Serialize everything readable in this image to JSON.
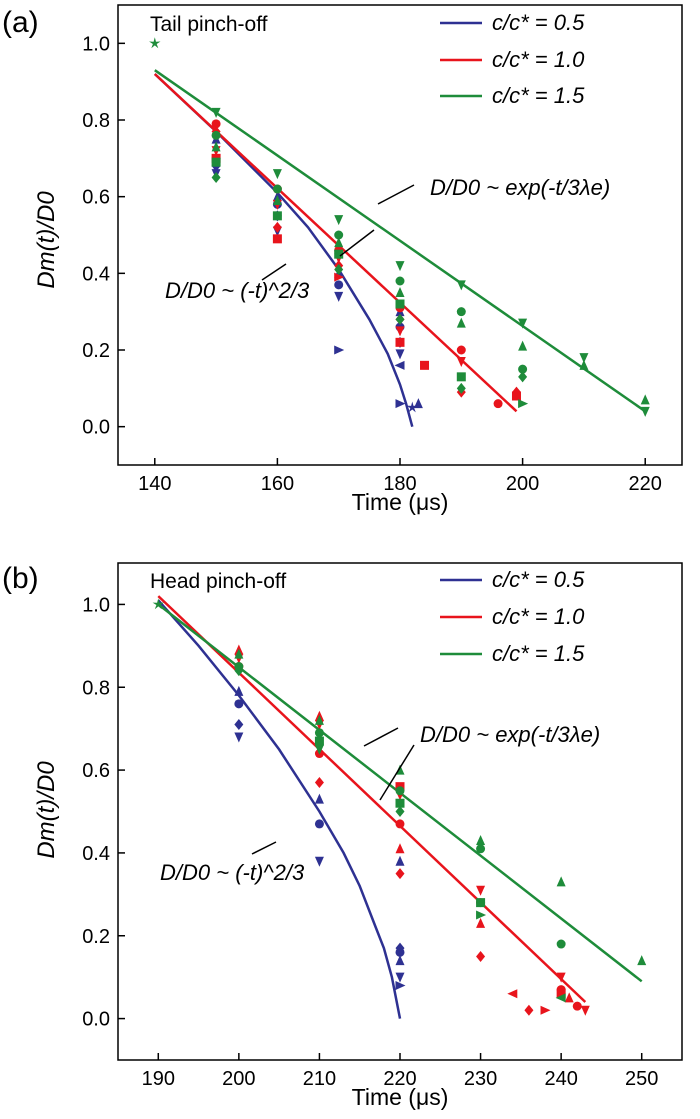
{
  "chart_data": [
    {
      "panel_label": "(a)",
      "type": "scatter",
      "title": "Tail pinch-off",
      "xlabel": "Time (μs)",
      "ylabel": "Dm(t)/D0",
      "xlim": [
        134,
        226
      ],
      "ylim": [
        -0.1,
        1.1
      ],
      "xticks": [
        140,
        160,
        180,
        200,
        220
      ],
      "yticks": [
        0.0,
        0.2,
        0.4,
        0.6,
        0.8,
        1.0
      ],
      "series": [
        {
          "name": "c/c* = 0.5",
          "color": "#2e3192",
          "fit": [
            [
              140,
              0.92
            ],
            [
              150,
              0.77
            ],
            [
              160,
              0.61
            ],
            [
              165,
              0.52
            ],
            [
              170,
              0.41
            ],
            [
              175,
              0.28
            ],
            [
              178,
              0.19
            ],
            [
              180,
              0.11
            ],
            [
              181,
              0.06
            ],
            [
              182,
              0.0
            ]
          ],
          "points": [
            [
              150,
              0.75,
              "tri"
            ],
            [
              150,
              0.7,
              "circ"
            ],
            [
              150,
              0.68,
              "diam"
            ],
            [
              150,
              0.66,
              "tridown"
            ],
            [
              160,
              0.6,
              "tri"
            ],
            [
              160,
              0.58,
              "circ"
            ],
            [
              160,
              0.55,
              "diam"
            ],
            [
              160,
              0.51,
              "tridown"
            ],
            [
              170,
              0.4,
              "tri"
            ],
            [
              170,
              0.37,
              "circ"
            ],
            [
              170,
              0.34,
              "tridown"
            ],
            [
              170,
              0.2,
              "triright"
            ],
            [
              180,
              0.3,
              "tri"
            ],
            [
              180,
              0.26,
              "circ"
            ],
            [
              180,
              0.22,
              "diam"
            ],
            [
              180,
              0.19,
              "tridown"
            ],
            [
              180,
              0.16,
              "trileft"
            ],
            [
              180,
              0.06,
              "triright"
            ],
            [
              182,
              0.05,
              "star"
            ],
            [
              183,
              0.06,
              "tri"
            ]
          ]
        },
        {
          "name": "c/c* = 1.0",
          "color": "#e8141c",
          "fit": [
            [
              140,
              0.92
            ],
            [
              199,
              0.04
            ]
          ],
          "points": [
            [
              150,
              0.79,
              "circ"
            ],
            [
              150,
              0.77,
              "diam"
            ],
            [
              150,
              0.72,
              "tridown"
            ],
            [
              150,
              0.7,
              "sq"
            ],
            [
              160,
              0.62,
              "circ"
            ],
            [
              160,
              0.58,
              "tridown"
            ],
            [
              160,
              0.52,
              "diam"
            ],
            [
              160,
              0.49,
              "sq"
            ],
            [
              170,
              0.46,
              "circ"
            ],
            [
              170,
              0.44,
              "tridown"
            ],
            [
              170,
              0.42,
              "diam"
            ],
            [
              170,
              0.39,
              "triright"
            ],
            [
              180,
              0.31,
              "circ"
            ],
            [
              180,
              0.28,
              "diam"
            ],
            [
              180,
              0.25,
              "tridown"
            ],
            [
              180,
              0.22,
              "sq"
            ],
            [
              184,
              0.16,
              "sq"
            ],
            [
              190,
              0.2,
              "circ"
            ],
            [
              190,
              0.17,
              "tridown"
            ],
            [
              190,
              0.09,
              "diam"
            ],
            [
              196,
              0.06,
              "circ"
            ],
            [
              199,
              0.09,
              "diam"
            ],
            [
              199,
              0.08,
              "sq"
            ]
          ]
        },
        {
          "name": "c/c* = 1.5",
          "color": "#1e8c3a",
          "fit": [
            [
              140,
              0.93
            ],
            [
              220,
              0.04
            ]
          ],
          "points": [
            [
              140,
              1.0,
              "star"
            ],
            [
              150,
              0.82,
              "tridown"
            ],
            [
              150,
              0.76,
              "circ"
            ],
            [
              150,
              0.73,
              "tri"
            ],
            [
              150,
              0.69,
              "sq"
            ],
            [
              150,
              0.65,
              "diam"
            ],
            [
              160,
              0.66,
              "tridown"
            ],
            [
              160,
              0.62,
              "circ"
            ],
            [
              160,
              0.59,
              "tri"
            ],
            [
              160,
              0.55,
              "sq"
            ],
            [
              170,
              0.54,
              "tridown"
            ],
            [
              170,
              0.5,
              "circ"
            ],
            [
              170,
              0.48,
              "tri"
            ],
            [
              170,
              0.45,
              "sq"
            ],
            [
              170,
              0.41,
              "diam"
            ],
            [
              180,
              0.42,
              "tridown"
            ],
            [
              180,
              0.38,
              "circ"
            ],
            [
              180,
              0.35,
              "tri"
            ],
            [
              180,
              0.32,
              "sq"
            ],
            [
              180,
              0.28,
              "diam"
            ],
            [
              190,
              0.37,
              "tridown"
            ],
            [
              190,
              0.3,
              "circ"
            ],
            [
              190,
              0.27,
              "tri"
            ],
            [
              190,
              0.13,
              "sq"
            ],
            [
              190,
              0.1,
              "diam"
            ],
            [
              200,
              0.27,
              "tridown"
            ],
            [
              200,
              0.21,
              "tri"
            ],
            [
              200,
              0.15,
              "circ"
            ],
            [
              200,
              0.13,
              "diam"
            ],
            [
              200,
              0.06,
              "triright"
            ],
            [
              210,
              0.18,
              "tridown"
            ],
            [
              210,
              0.16,
              "tri"
            ],
            [
              220,
              0.07,
              "tri"
            ],
            [
              220,
              0.04,
              "tridown"
            ]
          ]
        }
      ],
      "annotations": [
        {
          "text": "D/D0 ~ exp(-t/3λe)",
          "target": "exp_fit"
        },
        {
          "text": "D/D0 ~ (-t)^2/3",
          "target": "power_fit"
        }
      ]
    },
    {
      "panel_label": "(b)",
      "type": "scatter",
      "title": "Head pinch-off",
      "xlabel": "Time (μs)",
      "ylabel": "Dm(t)/D0",
      "xlim": [
        185,
        255
      ],
      "ylim": [
        -0.1,
        1.1
      ],
      "xticks": [
        190,
        200,
        210,
        220,
        230,
        240,
        250
      ],
      "yticks": [
        0.0,
        0.2,
        0.4,
        0.6,
        0.8,
        1.0
      ],
      "series": [
        {
          "name": "c/c* = 0.5",
          "color": "#2e3192",
          "fit": [
            [
              190,
              1.01
            ],
            [
              195,
              0.9
            ],
            [
              200,
              0.78
            ],
            [
              205,
              0.65
            ],
            [
              210,
              0.5
            ],
            [
              213,
              0.4
            ],
            [
              215,
              0.32
            ],
            [
              217,
              0.22
            ],
            [
              218,
              0.17
            ],
            [
              219,
              0.1
            ],
            [
              220,
              0.0
            ]
          ],
          "points": [
            [
              200,
              0.79,
              "tri"
            ],
            [
              200,
              0.76,
              "circ"
            ],
            [
              200,
              0.71,
              "diam"
            ],
            [
              200,
              0.68,
              "tridown"
            ],
            [
              210,
              0.53,
              "tri"
            ],
            [
              210,
              0.47,
              "circ"
            ],
            [
              210,
              0.38,
              "tridown"
            ],
            [
              220,
              0.38,
              "tri"
            ],
            [
              220,
              0.17,
              "diam"
            ],
            [
              220,
              0.16,
              "circ"
            ],
            [
              220,
              0.14,
              "tri"
            ],
            [
              220,
              0.1,
              "tridown"
            ],
            [
              220,
              0.08,
              "triright"
            ]
          ]
        },
        {
          "name": "c/c* = 1.0",
          "color": "#e8141c",
          "fit": [
            [
              190,
              1.02
            ],
            [
              243,
              0.04
            ]
          ],
          "points": [
            [
              200,
              0.89,
              "tri"
            ],
            [
              200,
              0.87,
              "tridown"
            ],
            [
              200,
              0.85,
              "circ"
            ],
            [
              210,
              0.73,
              "tri"
            ],
            [
              210,
              0.71,
              "tridown"
            ],
            [
              210,
              0.64,
              "circ"
            ],
            [
              210,
              0.57,
              "diam"
            ],
            [
              220,
              0.56,
              "sq"
            ],
            [
              220,
              0.54,
              "tridown"
            ],
            [
              220,
              0.47,
              "circ"
            ],
            [
              220,
              0.41,
              "tri"
            ],
            [
              220,
              0.35,
              "diam"
            ],
            [
              230,
              0.31,
              "tridown"
            ],
            [
              230,
              0.28,
              "circ"
            ],
            [
              230,
              0.23,
              "tri"
            ],
            [
              230,
              0.15,
              "diam"
            ],
            [
              234,
              0.06,
              "trileft"
            ],
            [
              236,
              0.02,
              "diam"
            ],
            [
              238,
              0.02,
              "triright"
            ],
            [
              240,
              0.1,
              "tridown"
            ],
            [
              240,
              0.07,
              "circ"
            ],
            [
              240,
              0.06,
              "sq"
            ],
            [
              241,
              0.05,
              "tri"
            ],
            [
              242,
              0.03,
              "circ"
            ],
            [
              243,
              0.02,
              "tridown"
            ]
          ]
        },
        {
          "name": "c/c* = 1.5",
          "color": "#1e8c3a",
          "fit": [
            [
              190,
              1.0
            ],
            [
              250,
              0.09
            ]
          ],
          "points": [
            [
              190,
              1.0,
              "star"
            ],
            [
              200,
              0.88,
              "tri"
            ],
            [
              200,
              0.85,
              "circ"
            ],
            [
              200,
              0.84,
              "diam"
            ],
            [
              210,
              0.72,
              "tri"
            ],
            [
              210,
              0.69,
              "circ"
            ],
            [
              210,
              0.67,
              "sq"
            ],
            [
              210,
              0.65,
              "tridown"
            ],
            [
              220,
              0.6,
              "tri"
            ],
            [
              220,
              0.55,
              "circ"
            ],
            [
              220,
              0.52,
              "sq"
            ],
            [
              220,
              0.5,
              "diam"
            ],
            [
              230,
              0.43,
              "tri"
            ],
            [
              230,
              0.41,
              "circ"
            ],
            [
              230,
              0.28,
              "sq"
            ],
            [
              230,
              0.25,
              "triright"
            ],
            [
              240,
              0.33,
              "tri"
            ],
            [
              240,
              0.18,
              "circ"
            ],
            [
              240,
              0.05,
              "trileft"
            ],
            [
              250,
              0.14,
              "tri"
            ]
          ]
        }
      ],
      "annotations": [
        {
          "text": "D/D0 ~ exp(-t/3λe)",
          "target": "exp_fit"
        },
        {
          "text": "D/D0 ~ (-t)^2/3",
          "target": "power_fit"
        }
      ]
    }
  ]
}
